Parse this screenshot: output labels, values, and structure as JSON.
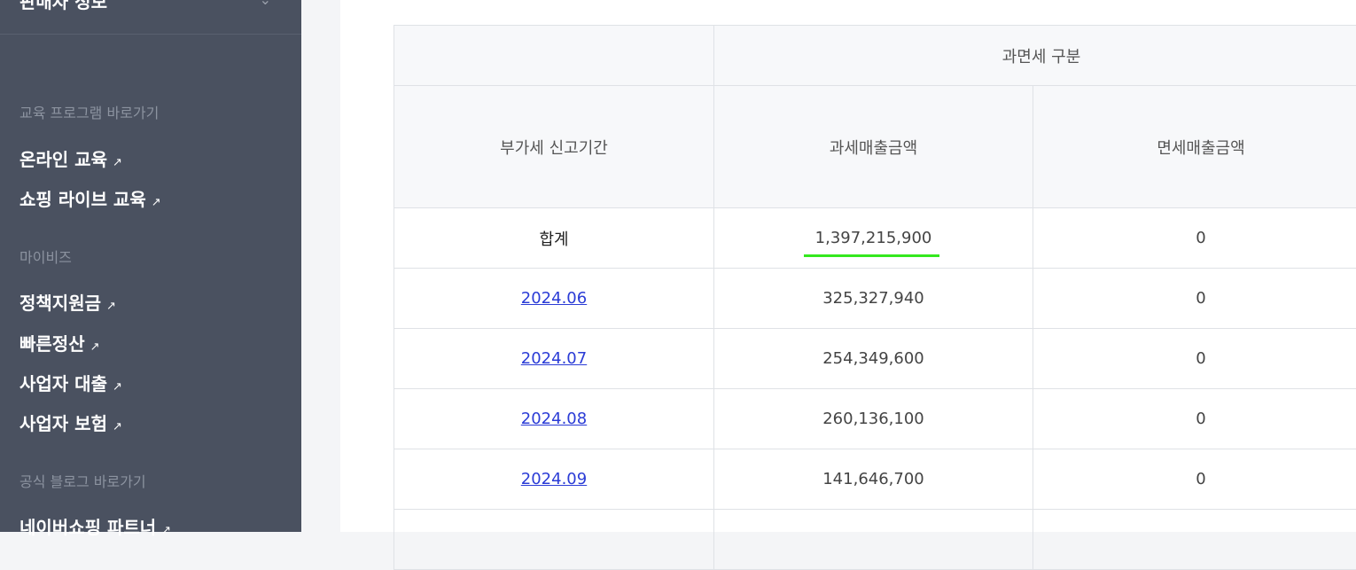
{
  "sidebar": {
    "top_item_label": "판매자 정보",
    "sections": [
      {
        "title": "교육 프로그램 바로가기",
        "links": [
          "온라인 교육",
          "쇼핑 라이브 교육"
        ]
      },
      {
        "title": "마이비즈",
        "links": [
          "정책지원금",
          "빠른정산",
          "사업자 대출",
          "사업자 보험"
        ]
      },
      {
        "title": "공식 블로그 바로가기",
        "links": [
          "네이버쇼핑 파트너"
        ]
      }
    ],
    "external_arrow": "↗"
  },
  "table": {
    "header_group": "과면세 구분",
    "col_period": "부가세 신고기간",
    "col_taxable": "과세매출금액",
    "col_exempt": "면세매출금액",
    "total_label": "합계",
    "total_taxable": "1,397,215,900",
    "total_exempt": "0",
    "rows": [
      {
        "period": "2024.06",
        "taxable": "325,327,940",
        "exempt": "0"
      },
      {
        "period": "2024.07",
        "taxable": "254,349,600",
        "exempt": "0"
      },
      {
        "period": "2024.08",
        "taxable": "260,136,100",
        "exempt": "0"
      },
      {
        "period": "2024.09",
        "taxable": "141,646,700",
        "exempt": "0"
      }
    ]
  },
  "colors": {
    "sidebar_bg": "#4a5160",
    "link_blue": "#2b3cd6",
    "highlight_green": "#34e81e"
  }
}
